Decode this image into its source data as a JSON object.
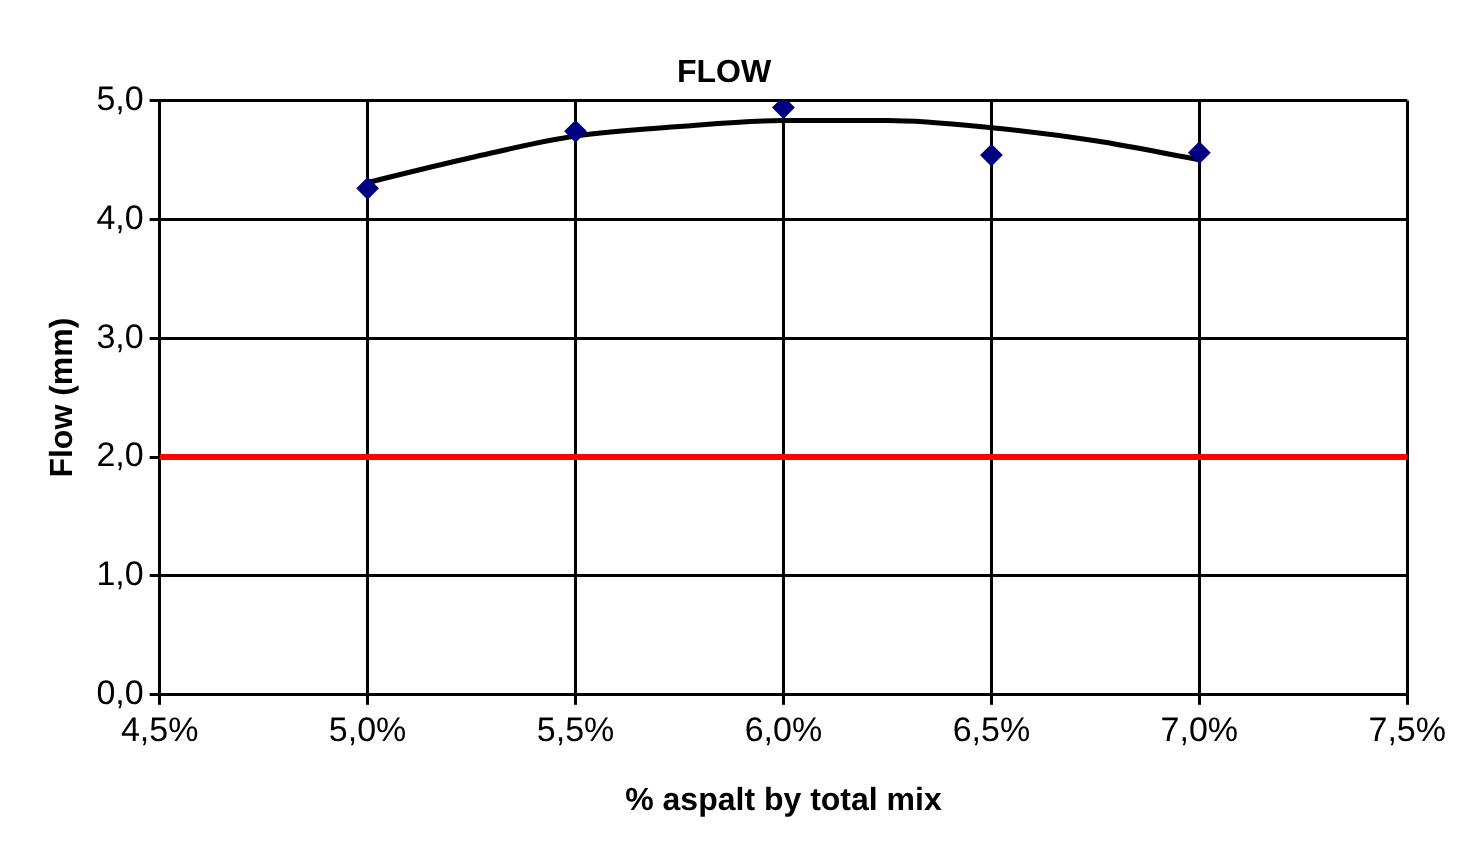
{
  "chart_data": {
    "type": "scatter",
    "title": "FLOW",
    "xlabel": "% aspalt by total mix",
    "ylabel": "Flow (mm)",
    "series": [
      {
        "type": "scatter",
        "color": "#000080",
        "marker": "diamond",
        "x": [
          5.0,
          5.5,
          6.0,
          6.5,
          7.0
        ],
        "values": [
          4.26,
          4.74,
          4.94,
          4.54,
          4.56
        ]
      },
      {
        "type": "line",
        "color": "#000000",
        "marker": "none",
        "x": [
          5.0,
          5.25,
          5.5,
          5.75,
          6.0,
          6.25,
          6.5,
          6.75,
          7.0
        ],
        "values": [
          4.31,
          4.52,
          4.7,
          4.78,
          4.83,
          4.83,
          4.77,
          4.66,
          4.5
        ]
      }
    ],
    "xlim": [
      4.5,
      7.5
    ],
    "xticks": [
      {
        "value": 4.5,
        "label": "4,5%"
      },
      {
        "value": 5.0,
        "label": "5,0%"
      },
      {
        "value": 5.5,
        "label": "5,5%"
      },
      {
        "value": 6.0,
        "label": "6,0%"
      },
      {
        "value": 6.5,
        "label": "6,5%"
      },
      {
        "value": 7.0,
        "label": "7,0%"
      },
      {
        "value": 7.5,
        "label": "7,5%"
      }
    ],
    "ylim": [
      0,
      5
    ],
    "yticks": [
      {
        "value": 0,
        "label": "0,0"
      },
      {
        "value": 1,
        "label": "1,0"
      },
      {
        "value": 2,
        "label": "2,0"
      },
      {
        "value": 3,
        "label": "3,0"
      },
      {
        "value": 4,
        "label": "4,0"
      },
      {
        "value": 5,
        "label": "5,0"
      }
    ],
    "ref_lines": [
      {
        "axis": "y",
        "value": 2,
        "color": "#ff0000"
      }
    ],
    "grid": true,
    "legend": false
  }
}
